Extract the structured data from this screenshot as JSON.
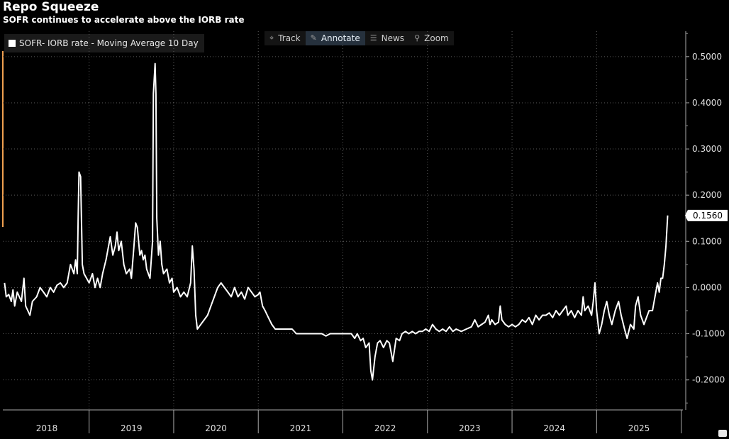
{
  "chart_data": {
    "type": "line",
    "title": "Repo Squeeze",
    "subtitle": "SOFR continues to accelerate above the IORB rate",
    "series": [
      {
        "name": "SOFR- IORB rate - Moving Average 10 Day",
        "color": "#ffffff",
        "last_value_label": "0.1560",
        "points": [
          [
            2018.0,
            0.01
          ],
          [
            2018.02,
            -0.02
          ],
          [
            2018.05,
            -0.015
          ],
          [
            2018.08,
            -0.03
          ],
          [
            2018.1,
            -0.005
          ],
          [
            2018.12,
            -0.04
          ],
          [
            2018.15,
            -0.01
          ],
          [
            2018.2,
            -0.03
          ],
          [
            2018.23,
            0.02
          ],
          [
            2018.25,
            -0.04
          ],
          [
            2018.3,
            -0.06
          ],
          [
            2018.33,
            -0.03
          ],
          [
            2018.38,
            -0.02
          ],
          [
            2018.42,
            0.0
          ],
          [
            2018.46,
            -0.01
          ],
          [
            2018.5,
            -0.02
          ],
          [
            2018.54,
            0.0
          ],
          [
            2018.58,
            -0.01
          ],
          [
            2018.62,
            0.005
          ],
          [
            2018.66,
            0.01
          ],
          [
            2018.7,
            0.0
          ],
          [
            2018.74,
            0.01
          ],
          [
            2018.78,
            0.05
          ],
          [
            2018.82,
            0.03
          ],
          [
            2018.84,
            0.06
          ],
          [
            2018.86,
            0.03
          ],
          [
            2018.87,
            0.15
          ],
          [
            2018.88,
            0.25
          ],
          [
            2018.9,
            0.24
          ],
          [
            2018.92,
            0.05
          ],
          [
            2018.94,
            0.03
          ],
          [
            2018.97,
            0.02
          ],
          [
            2019.0,
            0.01
          ],
          [
            2019.04,
            0.03
          ],
          [
            2019.07,
            0.0
          ],
          [
            2019.1,
            0.02
          ],
          [
            2019.13,
            0.0
          ],
          [
            2019.16,
            0.03
          ],
          [
            2019.2,
            0.06
          ],
          [
            2019.25,
            0.11
          ],
          [
            2019.28,
            0.07
          ],
          [
            2019.31,
            0.09
          ],
          [
            2019.33,
            0.12
          ],
          [
            2019.35,
            0.08
          ],
          [
            2019.38,
            0.1
          ],
          [
            2019.41,
            0.05
          ],
          [
            2019.44,
            0.03
          ],
          [
            2019.48,
            0.04
          ],
          [
            2019.5,
            0.02
          ],
          [
            2019.53,
            0.09
          ],
          [
            2019.55,
            0.14
          ],
          [
            2019.57,
            0.13
          ],
          [
            2019.6,
            0.07
          ],
          [
            2019.62,
            0.08
          ],
          [
            2019.64,
            0.06
          ],
          [
            2019.66,
            0.07
          ],
          [
            2019.68,
            0.04
          ],
          [
            2019.72,
            0.02
          ],
          [
            2019.75,
            0.1
          ],
          [
            2019.76,
            0.42
          ],
          [
            2019.78,
            0.485
          ],
          [
            2019.79,
            0.42
          ],
          [
            2019.8,
            0.15
          ],
          [
            2019.82,
            0.07
          ],
          [
            2019.84,
            0.1
          ],
          [
            2019.86,
            0.05
          ],
          [
            2019.88,
            0.03
          ],
          [
            2019.92,
            0.04
          ],
          [
            2019.95,
            0.01
          ],
          [
            2019.98,
            0.02
          ],
          [
            2020.0,
            -0.01
          ],
          [
            2020.04,
            0.0
          ],
          [
            2020.08,
            -0.02
          ],
          [
            2020.12,
            -0.01
          ],
          [
            2020.16,
            -0.02
          ],
          [
            2020.2,
            0.01
          ],
          [
            2020.22,
            0.09
          ],
          [
            2020.24,
            0.04
          ],
          [
            2020.26,
            -0.06
          ],
          [
            2020.28,
            -0.09
          ],
          [
            2020.32,
            -0.08
          ],
          [
            2020.36,
            -0.07
          ],
          [
            2020.4,
            -0.06
          ],
          [
            2020.44,
            -0.04
          ],
          [
            2020.48,
            -0.02
          ],
          [
            2020.52,
            0.0
          ],
          [
            2020.56,
            0.01
          ],
          [
            2020.6,
            0.0
          ],
          [
            2020.64,
            -0.01
          ],
          [
            2020.68,
            -0.02
          ],
          [
            2020.72,
            0.0
          ],
          [
            2020.76,
            -0.02
          ],
          [
            2020.8,
            -0.01
          ],
          [
            2020.84,
            -0.025
          ],
          [
            2020.88,
            0.0
          ],
          [
            2020.92,
            -0.01
          ],
          [
            2020.96,
            -0.02
          ],
          [
            2021.0,
            -0.015
          ],
          [
            2021.02,
            -0.01
          ],
          [
            2021.05,
            -0.04
          ],
          [
            2021.08,
            -0.05
          ],
          [
            2021.12,
            -0.065
          ],
          [
            2021.16,
            -0.08
          ],
          [
            2021.2,
            -0.09
          ],
          [
            2021.3,
            -0.09
          ],
          [
            2021.4,
            -0.09
          ],
          [
            2021.45,
            -0.1
          ],
          [
            2021.6,
            -0.1
          ],
          [
            2021.75,
            -0.1
          ],
          [
            2021.8,
            -0.105
          ],
          [
            2021.85,
            -0.1
          ],
          [
            2022.0,
            -0.1
          ],
          [
            2022.1,
            -0.1
          ],
          [
            2022.14,
            -0.11
          ],
          [
            2022.17,
            -0.1
          ],
          [
            2022.21,
            -0.115
          ],
          [
            2022.24,
            -0.11
          ],
          [
            2022.27,
            -0.13
          ],
          [
            2022.31,
            -0.12
          ],
          [
            2022.33,
            -0.18
          ],
          [
            2022.35,
            -0.2
          ],
          [
            2022.38,
            -0.15
          ],
          [
            2022.41,
            -0.12
          ],
          [
            2022.44,
            -0.115
          ],
          [
            2022.48,
            -0.13
          ],
          [
            2022.52,
            -0.115
          ],
          [
            2022.55,
            -0.12
          ],
          [
            2022.59,
            -0.16
          ],
          [
            2022.63,
            -0.11
          ],
          [
            2022.67,
            -0.115
          ],
          [
            2022.7,
            -0.1
          ],
          [
            2022.74,
            -0.095
          ],
          [
            2022.78,
            -0.1
          ],
          [
            2022.82,
            -0.095
          ],
          [
            2022.86,
            -0.1
          ],
          [
            2022.9,
            -0.095
          ],
          [
            2022.94,
            -0.095
          ],
          [
            2022.98,
            -0.09
          ],
          [
            2023.02,
            -0.095
          ],
          [
            2023.06,
            -0.08
          ],
          [
            2023.1,
            -0.09
          ],
          [
            2023.14,
            -0.095
          ],
          [
            2023.18,
            -0.09
          ],
          [
            2023.22,
            -0.095
          ],
          [
            2023.26,
            -0.085
          ],
          [
            2023.3,
            -0.095
          ],
          [
            2023.34,
            -0.09
          ],
          [
            2023.4,
            -0.095
          ],
          [
            2023.46,
            -0.09
          ],
          [
            2023.52,
            -0.085
          ],
          [
            2023.56,
            -0.07
          ],
          [
            2023.6,
            -0.085
          ],
          [
            2023.64,
            -0.08
          ],
          [
            2023.68,
            -0.075
          ],
          [
            2023.72,
            -0.06
          ],
          [
            2023.74,
            -0.08
          ],
          [
            2023.76,
            -0.07
          ],
          [
            2023.8,
            -0.08
          ],
          [
            2023.84,
            -0.075
          ],
          [
            2023.86,
            -0.04
          ],
          [
            2023.88,
            -0.07
          ],
          [
            2023.92,
            -0.08
          ],
          [
            2023.96,
            -0.085
          ],
          [
            2024.0,
            -0.08
          ],
          [
            2024.04,
            -0.085
          ],
          [
            2024.08,
            -0.08
          ],
          [
            2024.12,
            -0.07
          ],
          [
            2024.16,
            -0.075
          ],
          [
            2024.2,
            -0.065
          ],
          [
            2024.24,
            -0.08
          ],
          [
            2024.28,
            -0.06
          ],
          [
            2024.32,
            -0.07
          ],
          [
            2024.36,
            -0.06
          ],
          [
            2024.4,
            -0.06
          ],
          [
            2024.44,
            -0.055
          ],
          [
            2024.48,
            -0.065
          ],
          [
            2024.52,
            -0.05
          ],
          [
            2024.56,
            -0.06
          ],
          [
            2024.6,
            -0.05
          ],
          [
            2024.64,
            -0.04
          ],
          [
            2024.66,
            -0.06
          ],
          [
            2024.7,
            -0.05
          ],
          [
            2024.74,
            -0.065
          ],
          [
            2024.78,
            -0.05
          ],
          [
            2024.82,
            -0.06
          ],
          [
            2024.84,
            -0.02
          ],
          [
            2024.86,
            -0.05
          ],
          [
            2024.9,
            -0.04
          ],
          [
            2024.94,
            -0.06
          ],
          [
            2024.96,
            -0.03
          ],
          [
            2024.98,
            0.01
          ],
          [
            2025.0,
            -0.05
          ],
          [
            2025.03,
            -0.1
          ],
          [
            2025.06,
            -0.08
          ],
          [
            2025.09,
            -0.05
          ],
          [
            2025.12,
            -0.03
          ],
          [
            2025.15,
            -0.06
          ],
          [
            2025.18,
            -0.08
          ],
          [
            2025.22,
            -0.05
          ],
          [
            2025.26,
            -0.03
          ],
          [
            2025.29,
            -0.06
          ],
          [
            2025.33,
            -0.09
          ],
          [
            2025.36,
            -0.11
          ],
          [
            2025.4,
            -0.08
          ],
          [
            2025.44,
            -0.09
          ],
          [
            2025.46,
            -0.04
          ],
          [
            2025.49,
            -0.02
          ],
          [
            2025.52,
            -0.06
          ],
          [
            2025.56,
            -0.08
          ],
          [
            2025.6,
            -0.06
          ],
          [
            2025.62,
            -0.05
          ],
          [
            2025.66,
            -0.05
          ],
          [
            2025.69,
            -0.02
          ],
          [
            2025.72,
            0.01
          ],
          [
            2025.74,
            -0.01
          ],
          [
            2025.76,
            0.02
          ],
          [
            2025.78,
            0.02
          ],
          [
            2025.8,
            0.05
          ],
          [
            2025.82,
            0.09
          ],
          [
            2025.84,
            0.156
          ]
        ]
      }
    ],
    "x_axis": {
      "tick_labels": [
        "2018",
        "2019",
        "2020",
        "2021",
        "2022",
        "2023",
        "2024",
        "2025"
      ],
      "range": [
        2017.98,
        2026.02
      ]
    },
    "y_axis": {
      "tick_labels": [
        "0.5000",
        "0.4000",
        "0.3000",
        "0.2000",
        "0.1000",
        "0.0000",
        "-0.1000",
        "-0.2000"
      ],
      "ticks": [
        0.5,
        0.4,
        0.3,
        0.2,
        0.1,
        0.0,
        -0.1,
        -0.2
      ],
      "range": [
        -0.265,
        0.555
      ],
      "position": "right"
    },
    "grid": true,
    "legend_position": "top-left"
  },
  "toolbar": {
    "buttons": [
      {
        "label": "Track",
        "icon": "crosshair-icon"
      },
      {
        "label": "Annotate",
        "icon": "pencil-icon",
        "active": true
      },
      {
        "label": "News",
        "icon": "news-icon"
      },
      {
        "label": "Zoom",
        "icon": "magnifier-icon"
      }
    ]
  }
}
